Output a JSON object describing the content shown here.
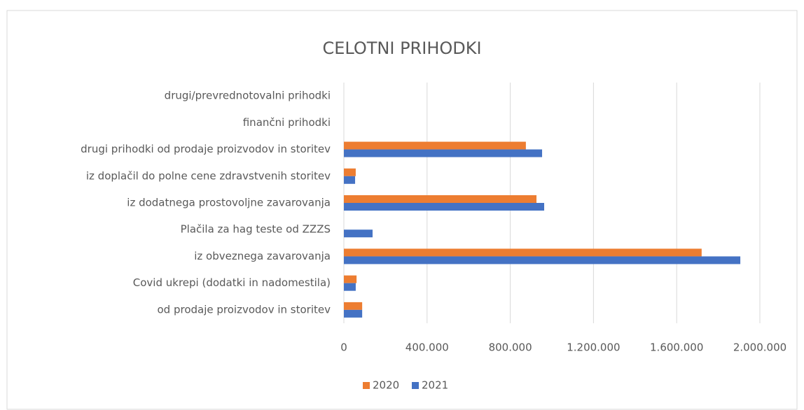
{
  "chart_data": {
    "type": "hbar",
    "title": "CELOTNI PRIHODKI",
    "categories": [
      "drugi/prevrednotovalni prihodki",
      "finančni prihodki",
      "drugi prihodki od prodaje proizvodov in storitev",
      "iz doplačil do polne cene zdravstvenih storitev",
      "iz dodatnega prostovoljne zavarovanja",
      "Plačila za hag teste od ZZZS",
      "iz obveznega zavarovanja",
      "Covid ukrepi (dodatki in nadomestila)",
      "od prodaje proizvodov in storitev"
    ],
    "series": [
      {
        "name": "2020",
        "color": "#ed7d31",
        "values": [
          0,
          0,
          875000,
          57000,
          926000,
          0,
          1720000,
          61000,
          88000
        ]
      },
      {
        "name": "2021",
        "color": "#4472c4",
        "values": [
          0,
          0,
          953000,
          54000,
          963000,
          138000,
          1906000,
          57000,
          88000
        ]
      }
    ],
    "xlim": [
      0,
      2000000
    ],
    "xticks": [
      0,
      {
        "value": 400000,
        "label": "400.000"
      },
      {
        "value": 800000,
        "label": "800.000"
      },
      {
        "value": 1200000,
        "label": "1.200.000"
      },
      {
        "value": 1600000,
        "label": "1.600.000"
      },
      {
        "value": 2000000,
        "label": "2.000.000"
      }
    ],
    "grid": true,
    "legend": "bottom"
  }
}
